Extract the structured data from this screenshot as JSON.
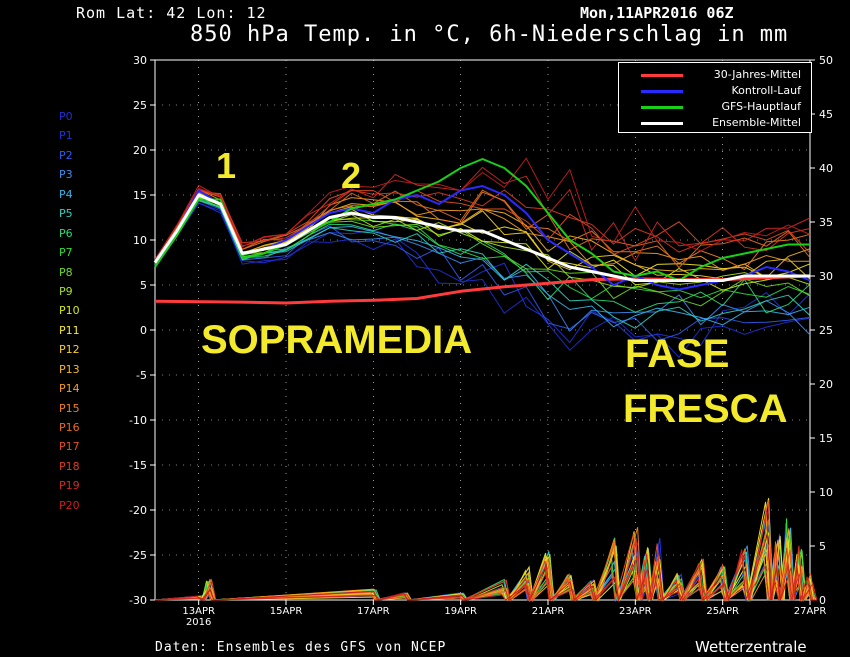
{
  "header": {
    "location": "Rom   Lat: 42 Lon: 12",
    "date": "Mon,11APR2016 06Z",
    "title": "850 hPa Temp. in °C, 6h-Niederschlag in mm"
  },
  "footer": {
    "source": "Daten: Ensembles des GFS von NCEP",
    "brand": "Wetterzentrale"
  },
  "annotations": {
    "marker_1": "1",
    "marker_2": "2",
    "sopramedia": "SOPRAMEDIA",
    "fase": "FASE",
    "fresca": "FRESCA"
  },
  "members": [
    {
      "label": "P0",
      "color": "#1f2fd6"
    },
    {
      "label": "P1",
      "color": "#2034e0"
    },
    {
      "label": "P2",
      "color": "#2f5cf0"
    },
    {
      "label": "P3",
      "color": "#3a8cf0"
    },
    {
      "label": "P4",
      "color": "#37b3e8"
    },
    {
      "label": "P5",
      "color": "#2fd0c0"
    },
    {
      "label": "P6",
      "color": "#2bd97a"
    },
    {
      "label": "P7",
      "color": "#2fdc3a"
    },
    {
      "label": "P8",
      "color": "#6cdc22"
    },
    {
      "label": "P9",
      "color": "#a8e01c"
    },
    {
      "label": "P10",
      "color": "#d6e81a"
    },
    {
      "label": "P11",
      "color": "#f3ea2b"
    },
    {
      "label": "P12",
      "color": "#f5cf26"
    },
    {
      "label": "P13",
      "color": "#f5b822"
    },
    {
      "label": "P14",
      "color": "#f59e20"
    },
    {
      "label": "P15",
      "color": "#f2801f"
    },
    {
      "label": "P16",
      "color": "#ea6a1e"
    },
    {
      "label": "P17",
      "color": "#e4501f"
    },
    {
      "label": "P18",
      "color": "#dc3b20"
    },
    {
      "label": "P19",
      "color": "#d42a22"
    },
    {
      "label": "P20",
      "color": "#c81e1e"
    }
  ],
  "chart_data": {
    "type": "line",
    "x_start": "2016-04-12",
    "x_end": "2016-04-27",
    "xticks": [
      {
        "date": "2016-04-13",
        "label": "13APR",
        "sub": "2016"
      },
      {
        "date": "2016-04-15",
        "label": "15APR"
      },
      {
        "date": "2016-04-17",
        "label": "17APR"
      },
      {
        "date": "2016-04-19",
        "label": "19APR"
      },
      {
        "date": "2016-04-21",
        "label": "21APR"
      },
      {
        "date": "2016-04-23",
        "label": "23APR"
      },
      {
        "date": "2016-04-25",
        "label": "25APR"
      },
      {
        "date": "2016-04-27",
        "label": "27APR"
      }
    ],
    "y_left": {
      "label": "850 hPa Temp (°C)",
      "min": -30,
      "max": 30,
      "ticks": [
        30,
        25,
        20,
        15,
        10,
        5,
        0,
        -5,
        -10,
        -15,
        -20,
        -25,
        -30
      ]
    },
    "y_right": {
      "label": "6h-Niederschlag (mm)",
      "min": 0,
      "max": 50,
      "ticks": [
        50,
        45,
        40,
        35,
        30,
        25,
        20,
        15,
        10,
        5,
        0
      ]
    },
    "grid": true,
    "legend_position": "top-right",
    "legend": [
      {
        "name": "30-Jahres-Mittel",
        "color": "#ff3b3b"
      },
      {
        "name": "Kontroll-Lauf",
        "color": "#2a2aff"
      },
      {
        "name": "GFS-Hauptlauf",
        "color": "#18d018"
      },
      {
        "name": "Ensemble-Mittel",
        "color": "#ffffff"
      }
    ],
    "series": [
      {
        "name": "30-Jahres-Mittel",
        "color": "#ff3b3b",
        "width": 3,
        "x": [
          "2016-04-12",
          "2016-04-14",
          "2016-04-15",
          "2016-04-16",
          "2016-04-17",
          "2016-04-18",
          "2016-04-19",
          "2016-04-20",
          "2016-04-21",
          "2016-04-22",
          "2016-04-23",
          "2016-04-24",
          "2016-04-25",
          "2016-04-26",
          "2016-04-27"
        ],
        "y": [
          3.2,
          3.1,
          3.0,
          3.2,
          3.3,
          3.5,
          4.3,
          4.8,
          5.2,
          5.6,
          5.7,
          5.6,
          5.6,
          5.8,
          6.0
        ]
      },
      {
        "name": "Kontroll-Lauf",
        "color": "#2a2aff",
        "width": 2,
        "x": [
          "2016-04-12",
          "2016-04-12T12",
          "2016-04-13",
          "2016-04-13T12",
          "2016-04-14",
          "2016-04-14T12",
          "2016-04-15",
          "2016-04-15T12",
          "2016-04-16",
          "2016-04-16T12",
          "2016-04-17",
          "2016-04-17T12",
          "2016-04-18",
          "2016-04-18T12",
          "2016-04-19",
          "2016-04-19T12",
          "2016-04-20",
          "2016-04-20T12",
          "2016-04-21",
          "2016-04-21T12",
          "2016-04-22",
          "2016-04-22T12",
          "2016-04-23",
          "2016-04-23T12",
          "2016-04-24",
          "2016-04-24T12",
          "2016-04-25",
          "2016-04-25T12",
          "2016-04-26",
          "2016-04-26T12",
          "2016-04-27"
        ],
        "y": [
          7,
          11,
          15.5,
          14,
          8.5,
          9,
          10,
          11.5,
          13,
          13.5,
          13,
          14.5,
          15,
          14,
          15.5,
          16,
          15,
          13,
          10,
          8.5,
          7,
          5,
          6,
          5,
          4.5,
          5,
          5.5,
          6,
          7,
          6.5,
          5.5
        ]
      },
      {
        "name": "GFS-Hauptlauf",
        "color": "#18d018",
        "width": 2,
        "x": [
          "2016-04-12",
          "2016-04-12T12",
          "2016-04-13",
          "2016-04-13T12",
          "2016-04-14",
          "2016-04-14T12",
          "2016-04-15",
          "2016-04-15T12",
          "2016-04-16",
          "2016-04-16T12",
          "2016-04-17",
          "2016-04-17T12",
          "2016-04-18",
          "2016-04-18T12",
          "2016-04-19",
          "2016-04-19T12",
          "2016-04-20",
          "2016-04-20T12",
          "2016-04-21",
          "2016-04-21T12",
          "2016-04-22",
          "2016-04-22T12",
          "2016-04-23",
          "2016-04-23T12",
          "2016-04-24",
          "2016-04-24T12",
          "2016-04-25",
          "2016-04-25T12",
          "2016-04-26",
          "2016-04-26T12",
          "2016-04-27"
        ],
        "y": [
          7,
          10.5,
          14.5,
          14.5,
          8,
          8.5,
          9.5,
          11,
          12,
          13.5,
          14,
          14.5,
          15.5,
          16.5,
          18,
          19,
          18,
          16,
          13,
          10,
          8.5,
          6.5,
          6,
          6.5,
          5.5,
          7,
          8,
          8.5,
          9,
          9.5,
          9.5
        ]
      },
      {
        "name": "Ensemble-Mittel",
        "color": "#ffffff",
        "width": 3,
        "x": [
          "2016-04-12",
          "2016-04-12T12",
          "2016-04-13",
          "2016-04-13T12",
          "2016-04-14",
          "2016-04-14T12",
          "2016-04-15",
          "2016-04-15T12",
          "2016-04-16",
          "2016-04-16T12",
          "2016-04-17",
          "2016-04-17T12",
          "2016-04-18",
          "2016-04-18T12",
          "2016-04-19",
          "2016-04-19T12",
          "2016-04-20",
          "2016-04-20T12",
          "2016-04-21",
          "2016-04-21T12",
          "2016-04-22",
          "2016-04-22T12",
          "2016-04-23",
          "2016-04-23T12",
          "2016-04-24",
          "2016-04-24T12",
          "2016-04-25",
          "2016-04-25T12",
          "2016-04-26",
          "2016-04-26T12",
          "2016-04-27"
        ],
        "y": [
          7.5,
          11,
          15,
          14,
          8.5,
          9,
          9.5,
          11,
          12.5,
          13,
          12.5,
          12.5,
          12,
          11.5,
          11,
          11,
          10,
          9,
          8,
          7,
          6.5,
          6,
          5.5,
          5.5,
          5.5,
          5.5,
          5.5,
          6,
          6,
          6,
          6
        ]
      }
    ],
    "members_spread": {
      "x": [
        "2016-04-12",
        "2016-04-12T12",
        "2016-04-13",
        "2016-04-13T12",
        "2016-04-14",
        "2016-04-14T12",
        "2016-04-15",
        "2016-04-15T12",
        "2016-04-16",
        "2016-04-16T12",
        "2016-04-17",
        "2016-04-17T12",
        "2016-04-18",
        "2016-04-18T12",
        "2016-04-19",
        "2016-04-19T12",
        "2016-04-20",
        "2016-04-20T12",
        "2016-04-21",
        "2016-04-21T12",
        "2016-04-22",
        "2016-04-22T12",
        "2016-04-23",
        "2016-04-23T12",
        "2016-04-24",
        "2016-04-24T12",
        "2016-04-25",
        "2016-04-25T12",
        "2016-04-26",
        "2016-04-26T12",
        "2016-04-27"
      ],
      "center": [
        7.5,
        11,
        15,
        14,
        8.5,
        9,
        9.5,
        11,
        12.5,
        13,
        12.5,
        12.5,
        12,
        11.5,
        11,
        11,
        10,
        9,
        8,
        7,
        6.5,
        6,
        5.5,
        5.5,
        5.5,
        5.5,
        5.5,
        6,
        6,
        6,
        6
      ],
      "spread": [
        0.3,
        0.5,
        0.8,
        1,
        1,
        1.2,
        1.2,
        1.5,
        2,
        2.5,
        3,
        3.5,
        4,
        4.5,
        5,
        5.5,
        6,
        6.5,
        7,
        7,
        6.5,
        6,
        6,
        5.5,
        5.5,
        5.5,
        5.5,
        5.5,
        5.5,
        5.5,
        5.5
      ]
    },
    "precipitation": {
      "x": [
        "2016-04-13",
        "2016-04-13T06",
        "2016-04-17",
        "2016-04-17T18",
        "2016-04-19",
        "2016-04-20",
        "2016-04-20T12",
        "2016-04-21",
        "2016-04-21T12",
        "2016-04-22",
        "2016-04-22T12",
        "2016-04-23",
        "2016-04-23T06",
        "2016-04-23T12",
        "2016-04-24",
        "2016-04-24T12",
        "2016-04-25",
        "2016-04-25T12",
        "2016-04-26",
        "2016-04-26T06",
        "2016-04-26T12",
        "2016-04-26T18",
        "2016-04-27"
      ],
      "y": [
        0.3,
        1.5,
        0.8,
        0.5,
        0.5,
        1.5,
        2.5,
        3.5,
        2,
        1.5,
        4.5,
        6,
        4,
        5,
        2,
        3,
        2.5,
        4,
        7.5,
        5,
        6,
        4,
        2
      ]
    }
  }
}
